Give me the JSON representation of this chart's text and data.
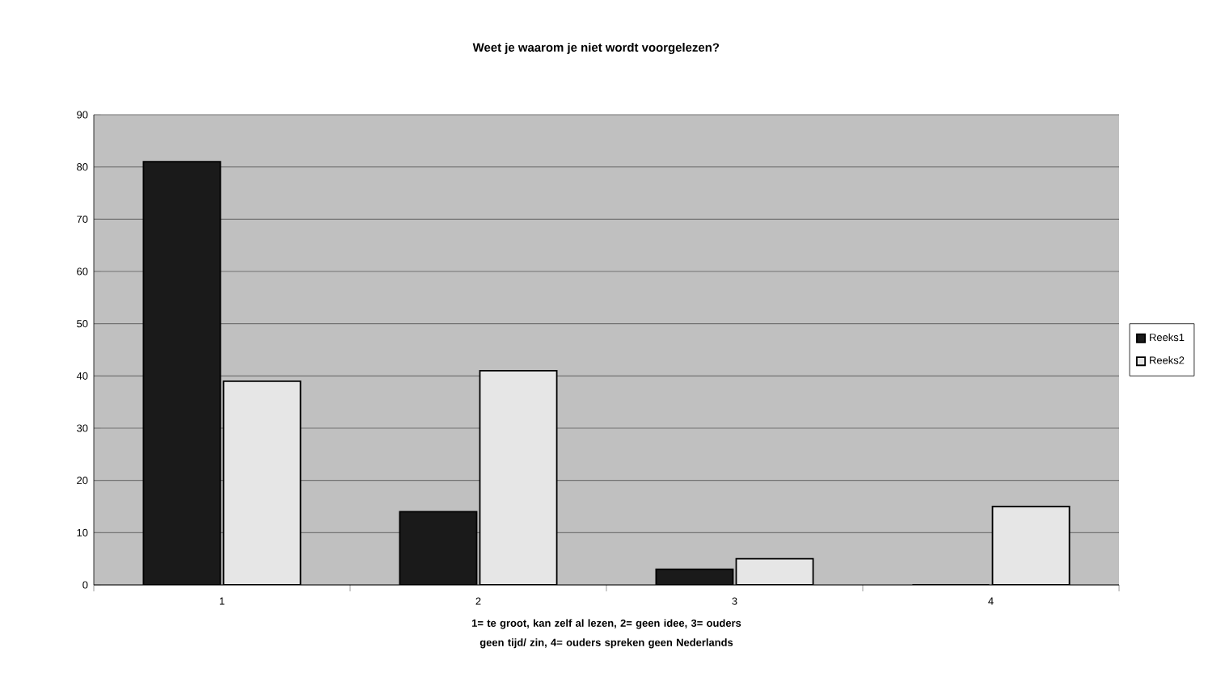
{
  "chart_data": {
    "type": "bar",
    "title": "Weet je waarom je niet wordt voorgelezen?",
    "xlabel": "1= te groot, kan zelf al lezen, 2= geen idee, 3= ouders geen tijd/ zin, 4= ouders spreken geen Nederlands",
    "categories": [
      "1",
      "2",
      "3",
      "4"
    ],
    "series": [
      {
        "name": "Reeks1",
        "color": "#1a1a1a",
        "values": [
          81,
          14,
          3,
          0
        ]
      },
      {
        "name": "Reeks2",
        "color": "#e6e6e6",
        "values": [
          39,
          41,
          5,
          15
        ]
      }
    ],
    "ylim": [
      0,
      90
    ],
    "yticks": [
      0,
      10,
      20,
      30,
      40,
      50,
      60,
      70,
      80,
      90
    ],
    "grid": "y",
    "legend": "right"
  }
}
